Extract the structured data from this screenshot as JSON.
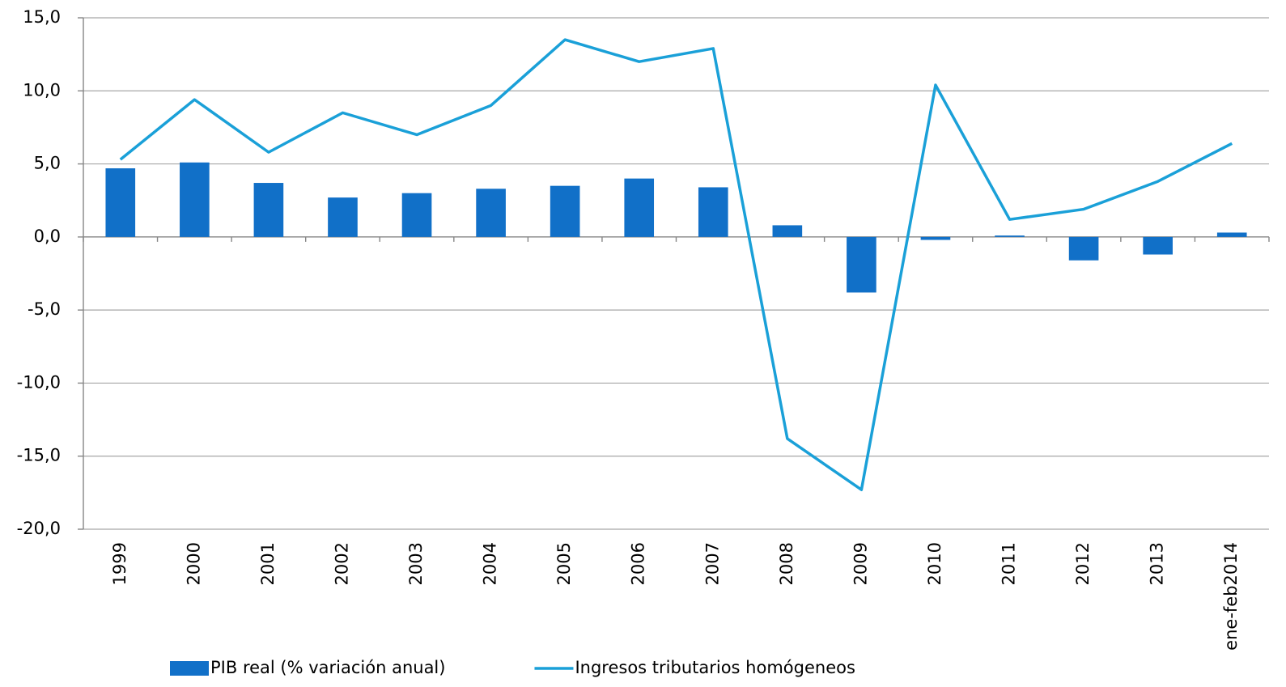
{
  "chart_data": {
    "type": "bar",
    "categories": [
      "1999",
      "2000",
      "2001",
      "2002",
      "2003",
      "2004",
      "2005",
      "2006",
      "2007",
      "2008",
      "2009",
      "2010",
      "2011",
      "2012",
      "2013",
      "ene-feb2014"
    ],
    "series": [
      {
        "name": "PIB real (% variación anual)",
        "type": "bar",
        "color": "#1170c8",
        "values": [
          4.7,
          5.1,
          3.7,
          2.7,
          3.0,
          3.3,
          3.5,
          4.0,
          3.4,
          0.8,
          -3.8,
          -0.2,
          0.1,
          -1.6,
          -1.2,
          0.3
        ]
      },
      {
        "name": "Ingresos tributarios homógeneos",
        "type": "line",
        "color": "#1aa0d8",
        "values": [
          5.3,
          9.4,
          5.8,
          8.5,
          7.0,
          9.0,
          13.5,
          12.0,
          12.9,
          -13.8,
          -17.3,
          10.4,
          1.2,
          1.9,
          3.8,
          6.4
        ]
      }
    ],
    "ylim": [
      -20,
      15
    ],
    "yticks": [
      {
        "value": -20,
        "label": "-20,0"
      },
      {
        "value": -15,
        "label": "-15,0"
      },
      {
        "value": -10,
        "label": "-10,0"
      },
      {
        "value": -5,
        "label": "-5,0"
      },
      {
        "value": 0,
        "label": "0,0"
      },
      {
        "value": 5,
        "label": "5,0"
      },
      {
        "value": 10,
        "label": "10,0"
      },
      {
        "value": 15,
        "label": "15,0"
      }
    ],
    "grid": true,
    "legend": "bottom"
  }
}
